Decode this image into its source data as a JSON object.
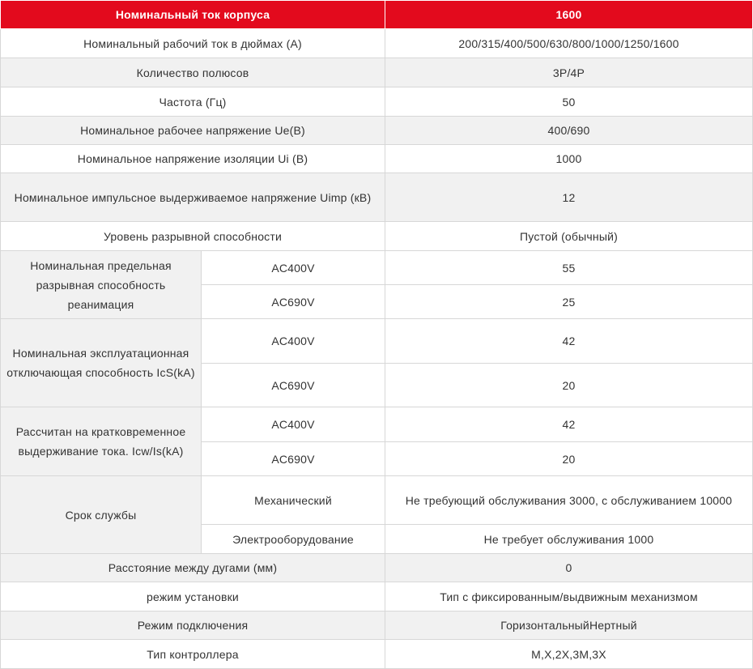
{
  "header": {
    "label": "Номинальный ток корпуса",
    "value": "1600"
  },
  "rows": {
    "r1": {
      "label": "Номинальный рабочий ток в дюймах (А)",
      "value": "200/315/400/500/630/800/1000/1250/1600"
    },
    "r2": {
      "label": "Количество полюсов",
      "value": "3P/4P"
    },
    "r3": {
      "label": "Частота (Гц)",
      "value": "50"
    },
    "r4": {
      "label": "Номинальное рабочее напряжение Ue(B)",
      "value": "400/690"
    },
    "r5": {
      "label": "Номинальное напряжение изоляции Ui (В)",
      "value": "1000"
    },
    "r6": {
      "label": "Номинальное импульсное выдерживаемое напряжение Uimp (кВ)",
      "value": "12"
    },
    "r7": {
      "label": "Уровень разрывной способности",
      "value": "Пустой (обычный)"
    },
    "icu": {
      "label": "Номинальная предельная разрывная способность реанимация",
      "sub1": "AC400V",
      "val1": "55",
      "sub2": "AC690V",
      "val2": "25"
    },
    "ics": {
      "label": "Номинальная эксплуатационная отключающая способность IcS(kA)",
      "sub1": "AC400V",
      "val1": "42",
      "sub2": "AC690V",
      "val2": "20"
    },
    "icw": {
      "label": "Рассчитан на кратковременное выдерживание тока. Icw/Is(kA)",
      "sub1": "AC400V",
      "val1": "42",
      "sub2": "AC690V",
      "val2": "20"
    },
    "life": {
      "label": "Срок службы",
      "sub1": "Механический",
      "val1": "Не требующий обслуживания 3000, с обслуживанием 10000",
      "sub2": "Электрооборудование",
      "val2": "Не требует обслуживания 1000"
    },
    "r8": {
      "label": "Расстояние между дугами (мм)",
      "value": "0"
    },
    "r9": {
      "label": "режим установки",
      "value": "Тип с фиксированным/выдвижным механизмом"
    },
    "r10": {
      "label": "Режим подключения",
      "value": "ГоризонтальныйНертный"
    },
    "r11": {
      "label": "Тип контроллера",
      "value": "M,X,2X,3M,3X"
    }
  },
  "colors": {
    "header_bg": "#e30a1d",
    "stripe_bg": "#f1f1f1",
    "border": "#d7d7d7"
  }
}
